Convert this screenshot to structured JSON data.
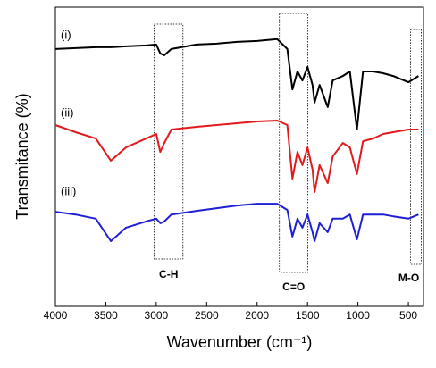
{
  "chart_data": {
    "type": "line",
    "xlabel": "Wavenumber (cm⁻¹)",
    "ylabel": "Transmitance (%)",
    "xlim": [
      4000,
      350
    ],
    "xticks": [
      4000,
      3500,
      3000,
      2500,
      2000,
      1500,
      1000,
      500
    ],
    "ylim": [
      0,
      100
    ],
    "x": [
      4000,
      3800,
      3600,
      3450,
      3300,
      3100,
      3000,
      2960,
      2920,
      2850,
      2600,
      2400,
      2200,
      2000,
      1800,
      1700,
      1650,
      1600,
      1550,
      1500,
      1450,
      1430,
      1380,
      1300,
      1250,
      1150,
      1080,
      1010,
      950,
      850,
      750,
      650,
      500,
      400
    ],
    "series": [
      {
        "name": "(i)",
        "color": "#000000",
        "values": [
          86.0,
          86.3,
          86.6,
          86.6,
          86.9,
          87.2,
          87.5,
          84.5,
          83.9,
          86.0,
          87.5,
          87.8,
          88.4,
          88.7,
          89.3,
          86.0,
          72.5,
          78.5,
          75.5,
          80.0,
          74.0,
          68.1,
          74.0,
          66.6,
          75.5,
          77.0,
          78.5,
          59.1,
          78.5,
          78.5,
          77.9,
          77.0,
          74.9,
          77.0
        ]
      },
      {
        "name": "(ii)",
        "color": "#e31a1c",
        "values": [
          60.6,
          58.2,
          56.1,
          48.7,
          53.1,
          56.1,
          57.6,
          51.6,
          54.6,
          59.1,
          60.0,
          60.6,
          61.2,
          61.8,
          62.1,
          60.6,
          42.7,
          51.6,
          47.2,
          53.1,
          45.7,
          38.2,
          47.2,
          41.2,
          50.1,
          54.6,
          53.1,
          44.2,
          55.2,
          56.1,
          57.6,
          58.2,
          59.1,
          59.1
        ]
      },
      {
        "name": "(iii)",
        "color": "#1f1fd6",
        "values": [
          31.6,
          30.7,
          29.3,
          21.8,
          26.3,
          28.4,
          29.3,
          27.8,
          28.4,
          30.7,
          31.9,
          32.8,
          33.7,
          34.3,
          34.3,
          32.2,
          23.3,
          29.3,
          26.3,
          30.7,
          24.8,
          21.8,
          27.8,
          24.8,
          29.3,
          29.3,
          30.7,
          22.4,
          30.7,
          30.7,
          30.7,
          30.1,
          29.3,
          30.7
        ]
      }
    ],
    "regions": [
      {
        "label": "C-H",
        "x": [
          3020,
          2735
        ]
      },
      {
        "label": "C=O",
        "x": [
          1779,
          1496
        ]
      },
      {
        "label": "M-O",
        "x": [
          478,
          372
        ]
      }
    ]
  }
}
